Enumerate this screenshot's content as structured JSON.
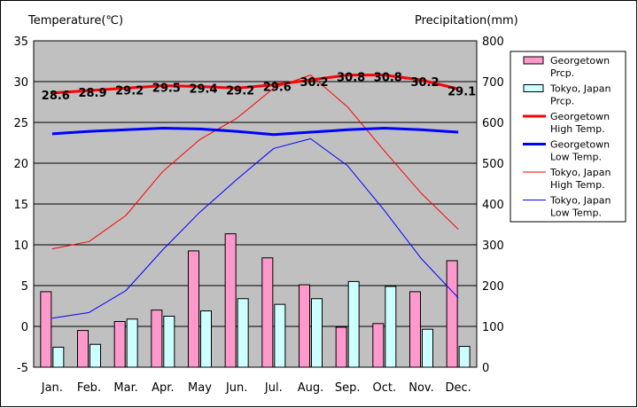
{
  "chart_data": {
    "type": "bar",
    "left_axis_title": "Temperature(℃)",
    "right_axis_title": "Precipitation(mm)",
    "categories": [
      "Jan.",
      "Feb.",
      "Mar.",
      "Apr.",
      "May",
      "Jun.",
      "Jul.",
      "Aug.",
      "Sep.",
      "Oct.",
      "Nov.",
      "Dec."
    ],
    "left_axis": {
      "min": -5,
      "max": 35,
      "ticks": [
        "35",
        "30",
        "25",
        "20",
        "15",
        "10",
        "5",
        "0",
        "-5"
      ]
    },
    "right_axis": {
      "min": 0,
      "max": 800,
      "ticks": [
        "800",
        "700",
        "600",
        "500",
        "400",
        "300",
        "200",
        "100",
        "0"
      ]
    },
    "grid": true,
    "legend_position": "right",
    "bar_series": [
      {
        "name": "Georgetown Prcp.",
        "color": "#ff99cc",
        "values": [
          185,
          90,
          112,
          140,
          285,
          327,
          268,
          202,
          98,
          107,
          185,
          261
        ]
      },
      {
        "name": "Tokyo, Japan Prcp.",
        "color": "#ccffff",
        "values": [
          49,
          56,
          118,
          125,
          138,
          168,
          154,
          168,
          210,
          198,
          93,
          51
        ]
      }
    ],
    "line_series": [
      {
        "name": "Georgetown High Temp.",
        "color": "#ff0000",
        "width": 3,
        "values": [
          28.6,
          28.9,
          29.2,
          29.5,
          29.4,
          29.2,
          29.6,
          30.2,
          30.8,
          30.8,
          30.2,
          29.1
        ],
        "labels": [
          "28.6",
          "28.9",
          "29.2",
          "29.5",
          "29.4",
          "29.2",
          "29.6",
          "30.2",
          "30.8",
          "30.8",
          "30.2",
          "29.1"
        ]
      },
      {
        "name": "Georgetown Low Temp.",
        "color": "#0000ff",
        "width": 3,
        "values": [
          23.6,
          23.9,
          24.1,
          24.3,
          24.2,
          23.9,
          23.5,
          23.8,
          24.1,
          24.3,
          24.1,
          23.8
        ]
      },
      {
        "name": "Tokyo, Japan High Temp.",
        "color": "#ff0000",
        "width": 1,
        "values": [
          9.5,
          10.4,
          13.6,
          19.0,
          22.9,
          25.5,
          29.2,
          30.8,
          26.9,
          21.5,
          16.3,
          11.9
        ]
      },
      {
        "name": "Tokyo, Japan Low Temp.",
        "color": "#0000ff",
        "width": 1,
        "values": [
          1.0,
          1.7,
          4.4,
          9.4,
          14.0,
          18.0,
          21.8,
          23.0,
          19.7,
          14.2,
          8.3,
          3.5
        ]
      }
    ],
    "legend": [
      {
        "kind": "bar",
        "color": "#ff99cc",
        "lines": [
          "Georgetown",
          "Prcp."
        ]
      },
      {
        "kind": "bar",
        "color": "#ccffff",
        "lines": [
          "Tokyo, Japan",
          "Prcp."
        ]
      },
      {
        "kind": "line",
        "color": "#ff0000",
        "width": 3,
        "lines": [
          "Georgetown",
          "High Temp."
        ]
      },
      {
        "kind": "line",
        "color": "#0000ff",
        "width": 3,
        "lines": [
          "Georgetown",
          "Low Temp."
        ]
      },
      {
        "kind": "line",
        "color": "#ff0000",
        "width": 1,
        "lines": [
          "Tokyo, Japan",
          "High Temp."
        ]
      },
      {
        "kind": "line",
        "color": "#0000ff",
        "width": 1,
        "lines": [
          "Tokyo, Japan",
          "Low Temp."
        ]
      }
    ],
    "plot_background": "#c0c0c0"
  }
}
